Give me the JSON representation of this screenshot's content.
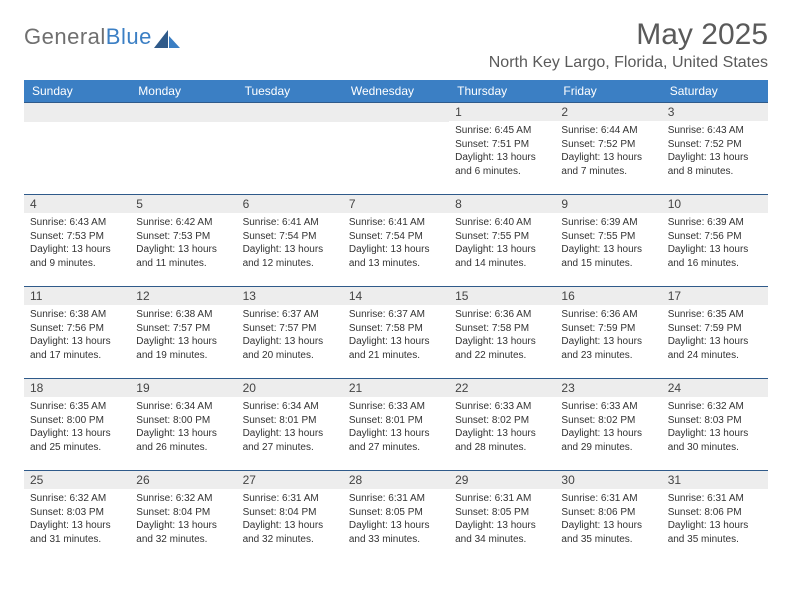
{
  "logo": {
    "text1": "General",
    "text2": "Blue"
  },
  "title": "May 2025",
  "location": "North Key Largo, Florida, United States",
  "colors": {
    "header_bg": "#3b7fc4",
    "header_text": "#ffffff",
    "daynum_bg": "#ededed",
    "border": "#2f5a8a",
    "body_text": "#333333",
    "title_text": "#5a5a5a"
  },
  "weekdays": [
    "Sunday",
    "Monday",
    "Tuesday",
    "Wednesday",
    "Thursday",
    "Friday",
    "Saturday"
  ],
  "cells": [
    {
      "day": "",
      "sunrise": "",
      "sunset": "",
      "daylight": ""
    },
    {
      "day": "",
      "sunrise": "",
      "sunset": "",
      "daylight": ""
    },
    {
      "day": "",
      "sunrise": "",
      "sunset": "",
      "daylight": ""
    },
    {
      "day": "",
      "sunrise": "",
      "sunset": "",
      "daylight": ""
    },
    {
      "day": "1",
      "sunrise": "Sunrise: 6:45 AM",
      "sunset": "Sunset: 7:51 PM",
      "daylight": "Daylight: 13 hours and 6 minutes."
    },
    {
      "day": "2",
      "sunrise": "Sunrise: 6:44 AM",
      "sunset": "Sunset: 7:52 PM",
      "daylight": "Daylight: 13 hours and 7 minutes."
    },
    {
      "day": "3",
      "sunrise": "Sunrise: 6:43 AM",
      "sunset": "Sunset: 7:52 PM",
      "daylight": "Daylight: 13 hours and 8 minutes."
    },
    {
      "day": "4",
      "sunrise": "Sunrise: 6:43 AM",
      "sunset": "Sunset: 7:53 PM",
      "daylight": "Daylight: 13 hours and 9 minutes."
    },
    {
      "day": "5",
      "sunrise": "Sunrise: 6:42 AM",
      "sunset": "Sunset: 7:53 PM",
      "daylight": "Daylight: 13 hours and 11 minutes."
    },
    {
      "day": "6",
      "sunrise": "Sunrise: 6:41 AM",
      "sunset": "Sunset: 7:54 PM",
      "daylight": "Daylight: 13 hours and 12 minutes."
    },
    {
      "day": "7",
      "sunrise": "Sunrise: 6:41 AM",
      "sunset": "Sunset: 7:54 PM",
      "daylight": "Daylight: 13 hours and 13 minutes."
    },
    {
      "day": "8",
      "sunrise": "Sunrise: 6:40 AM",
      "sunset": "Sunset: 7:55 PM",
      "daylight": "Daylight: 13 hours and 14 minutes."
    },
    {
      "day": "9",
      "sunrise": "Sunrise: 6:39 AM",
      "sunset": "Sunset: 7:55 PM",
      "daylight": "Daylight: 13 hours and 15 minutes."
    },
    {
      "day": "10",
      "sunrise": "Sunrise: 6:39 AM",
      "sunset": "Sunset: 7:56 PM",
      "daylight": "Daylight: 13 hours and 16 minutes."
    },
    {
      "day": "11",
      "sunrise": "Sunrise: 6:38 AM",
      "sunset": "Sunset: 7:56 PM",
      "daylight": "Daylight: 13 hours and 17 minutes."
    },
    {
      "day": "12",
      "sunrise": "Sunrise: 6:38 AM",
      "sunset": "Sunset: 7:57 PM",
      "daylight": "Daylight: 13 hours and 19 minutes."
    },
    {
      "day": "13",
      "sunrise": "Sunrise: 6:37 AM",
      "sunset": "Sunset: 7:57 PM",
      "daylight": "Daylight: 13 hours and 20 minutes."
    },
    {
      "day": "14",
      "sunrise": "Sunrise: 6:37 AM",
      "sunset": "Sunset: 7:58 PM",
      "daylight": "Daylight: 13 hours and 21 minutes."
    },
    {
      "day": "15",
      "sunrise": "Sunrise: 6:36 AM",
      "sunset": "Sunset: 7:58 PM",
      "daylight": "Daylight: 13 hours and 22 minutes."
    },
    {
      "day": "16",
      "sunrise": "Sunrise: 6:36 AM",
      "sunset": "Sunset: 7:59 PM",
      "daylight": "Daylight: 13 hours and 23 minutes."
    },
    {
      "day": "17",
      "sunrise": "Sunrise: 6:35 AM",
      "sunset": "Sunset: 7:59 PM",
      "daylight": "Daylight: 13 hours and 24 minutes."
    },
    {
      "day": "18",
      "sunrise": "Sunrise: 6:35 AM",
      "sunset": "Sunset: 8:00 PM",
      "daylight": "Daylight: 13 hours and 25 minutes."
    },
    {
      "day": "19",
      "sunrise": "Sunrise: 6:34 AM",
      "sunset": "Sunset: 8:00 PM",
      "daylight": "Daylight: 13 hours and 26 minutes."
    },
    {
      "day": "20",
      "sunrise": "Sunrise: 6:34 AM",
      "sunset": "Sunset: 8:01 PM",
      "daylight": "Daylight: 13 hours and 27 minutes."
    },
    {
      "day": "21",
      "sunrise": "Sunrise: 6:33 AM",
      "sunset": "Sunset: 8:01 PM",
      "daylight": "Daylight: 13 hours and 27 minutes."
    },
    {
      "day": "22",
      "sunrise": "Sunrise: 6:33 AM",
      "sunset": "Sunset: 8:02 PM",
      "daylight": "Daylight: 13 hours and 28 minutes."
    },
    {
      "day": "23",
      "sunrise": "Sunrise: 6:33 AM",
      "sunset": "Sunset: 8:02 PM",
      "daylight": "Daylight: 13 hours and 29 minutes."
    },
    {
      "day": "24",
      "sunrise": "Sunrise: 6:32 AM",
      "sunset": "Sunset: 8:03 PM",
      "daylight": "Daylight: 13 hours and 30 minutes."
    },
    {
      "day": "25",
      "sunrise": "Sunrise: 6:32 AM",
      "sunset": "Sunset: 8:03 PM",
      "daylight": "Daylight: 13 hours and 31 minutes."
    },
    {
      "day": "26",
      "sunrise": "Sunrise: 6:32 AM",
      "sunset": "Sunset: 8:04 PM",
      "daylight": "Daylight: 13 hours and 32 minutes."
    },
    {
      "day": "27",
      "sunrise": "Sunrise: 6:31 AM",
      "sunset": "Sunset: 8:04 PM",
      "daylight": "Daylight: 13 hours and 32 minutes."
    },
    {
      "day": "28",
      "sunrise": "Sunrise: 6:31 AM",
      "sunset": "Sunset: 8:05 PM",
      "daylight": "Daylight: 13 hours and 33 minutes."
    },
    {
      "day": "29",
      "sunrise": "Sunrise: 6:31 AM",
      "sunset": "Sunset: 8:05 PM",
      "daylight": "Daylight: 13 hours and 34 minutes."
    },
    {
      "day": "30",
      "sunrise": "Sunrise: 6:31 AM",
      "sunset": "Sunset: 8:06 PM",
      "daylight": "Daylight: 13 hours and 35 minutes."
    },
    {
      "day": "31",
      "sunrise": "Sunrise: 6:31 AM",
      "sunset": "Sunset: 8:06 PM",
      "daylight": "Daylight: 13 hours and 35 minutes."
    }
  ]
}
